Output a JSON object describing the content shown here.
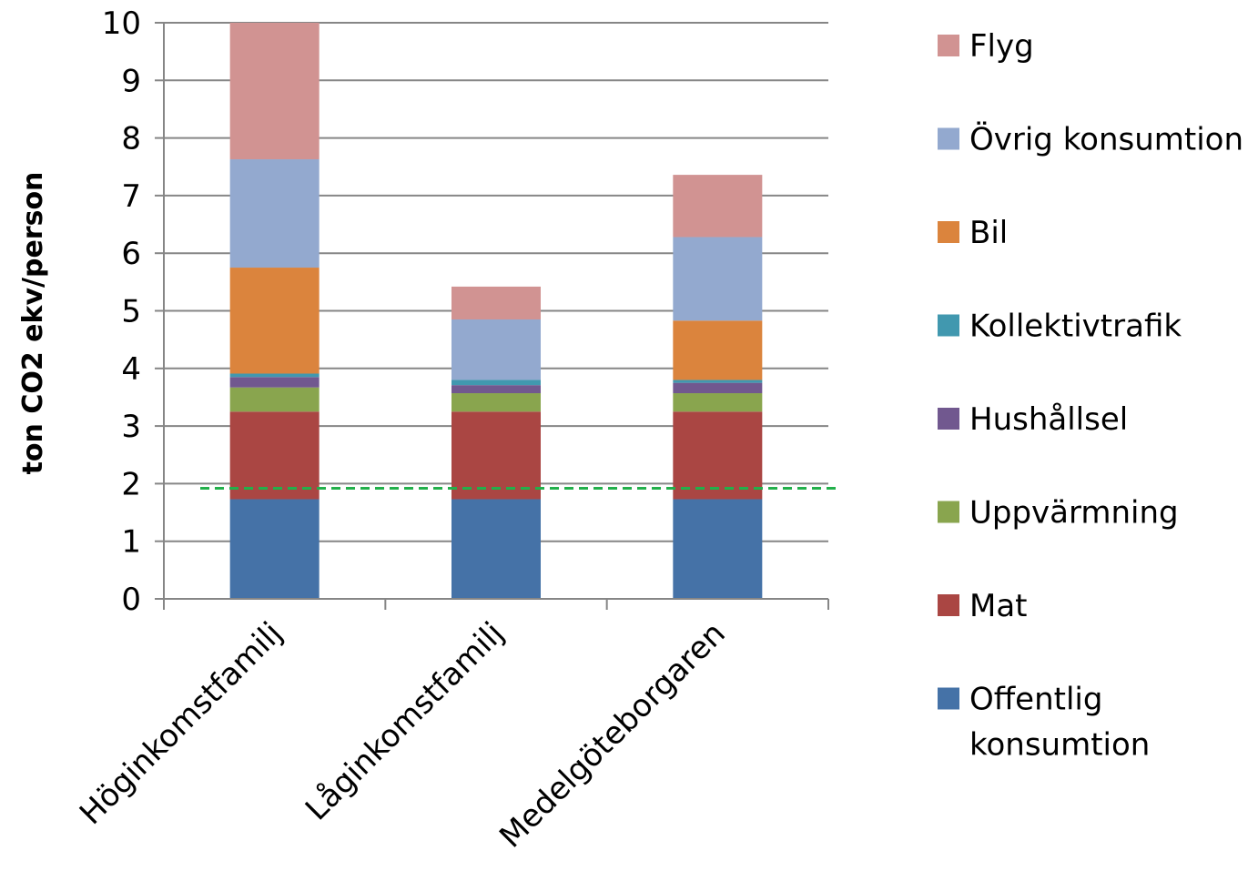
{
  "chart_data": {
    "type": "bar",
    "stacked": true,
    "title": "",
    "xlabel": "",
    "ylabel": "ton CO2 ekv/person",
    "ylim": [
      0,
      10
    ],
    "yticks": [
      0,
      1,
      2,
      3,
      4,
      5,
      6,
      7,
      8,
      9,
      10
    ],
    "grid": true,
    "legend_position": "right",
    "categories": [
      "Höginkomstfamilj",
      "Låginkomstfamilj",
      "Medelgöteborgaren"
    ],
    "series": [
      {
        "name": "Offentlig konsumtion",
        "label_lines": [
          "Offentlig",
          "konsumtion"
        ],
        "color": "#4572A7",
        "values": [
          1.73,
          1.73,
          1.73
        ]
      },
      {
        "name": "Mat",
        "label_lines": [
          "Mat"
        ],
        "color": "#AA4643",
        "values": [
          1.52,
          1.52,
          1.52
        ]
      },
      {
        "name": "Uppvärmning",
        "label_lines": [
          "Uppvärmning"
        ],
        "color": "#89A54E",
        "values": [
          0.42,
          0.32,
          0.32
        ]
      },
      {
        "name": "Hushållsel",
        "label_lines": [
          "Hushållsel"
        ],
        "color": "#71588F",
        "values": [
          0.18,
          0.14,
          0.18
        ]
      },
      {
        "name": "Kollektivtrafik",
        "label_lines": [
          "Kollektivtrafik"
        ],
        "color": "#4198AF",
        "values": [
          0.06,
          0.09,
          0.05
        ]
      },
      {
        "name": "Bil",
        "label_lines": [
          "Bil"
        ],
        "color": "#DB843D",
        "values": [
          1.84,
          0.0,
          1.03
        ]
      },
      {
        "name": "Övrig konsumtion",
        "label_lines": [
          "Övrig konsumtion"
        ],
        "color": "#93A9CF",
        "values": [
          1.88,
          1.05,
          1.45
        ]
      },
      {
        "name": "Flyg",
        "label_lines": [
          "Flyg"
        ],
        "color": "#D19392",
        "values": [
          2.37,
          0.57,
          1.08
        ]
      }
    ],
    "reference_line": {
      "value": 1.92,
      "color": "#22B04B",
      "style": "dashed"
    }
  }
}
